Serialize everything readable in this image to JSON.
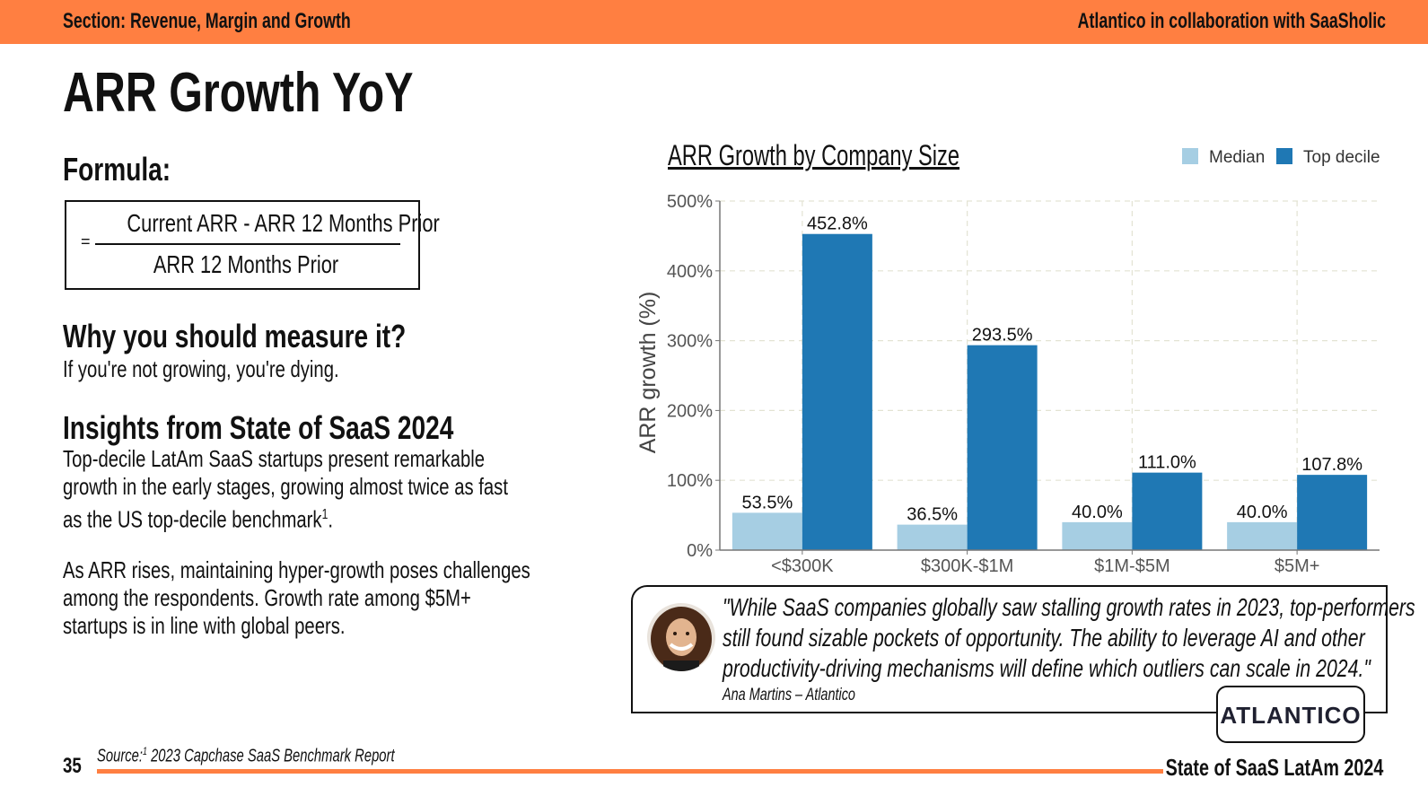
{
  "header": {
    "section": "Section: Revenue, Margin and Growth",
    "partner": "Atlantico in collaboration with SaaSholic"
  },
  "page_title": "ARR Growth YoY",
  "formula": {
    "heading": "Formula:",
    "equals": "=",
    "numerator": "Current ARR - ARR 12 Months Prior",
    "denominator": "ARR 12 Months Prior"
  },
  "why": {
    "heading": "Why you should measure it?",
    "text": "If you're not growing, you're dying."
  },
  "insights": {
    "heading": "Insights from State of SaaS 2024",
    "p1_lines": [
      "Top-decile LatAm SaaS startups present remarkable",
      "growth in the early stages, growing almost twice as fast",
      "as the US top-decile benchmark"
    ],
    "p1_sup": "1",
    "p1_end": ".",
    "p2_lines": [
      "As ARR rises, maintaining hyper-growth poses challenges",
      "among the respondents. Growth rate among $5M+",
      "startups is in line with global peers."
    ]
  },
  "chart_data": {
    "type": "bar",
    "title": "ARR Growth by Company Size",
    "categories": [
      "<$300K",
      "$300K-$1M",
      "$1M-$5M",
      "$5M+"
    ],
    "series": [
      {
        "name": "Median",
        "color": "#a6cee3",
        "values": [
          53.5,
          36.5,
          40.0,
          40.0
        ],
        "labels": [
          "53.5%",
          "36.5%",
          "40.0%",
          "40.0%"
        ]
      },
      {
        "name": "Top decile",
        "color": "#1f78b4",
        "values": [
          452.8,
          293.5,
          111.0,
          107.8
        ],
        "labels": [
          "452.8%",
          "293.5%",
          "111.0%",
          "107.8%"
        ]
      }
    ],
    "ylabel": "ARR growth (%)",
    "xlabel": "",
    "ylim": [
      0,
      500
    ],
    "yticks": [
      "0%",
      "100%",
      "200%",
      "300%",
      "400%",
      "500%"
    ],
    "grid": true,
    "legend_position": "top-right"
  },
  "quote": {
    "lines": [
      "\"While SaaS companies globally saw stalling growth rates in 2023, top-performers",
      "still found sizable pockets of opportunity. The ability to leverage AI and other",
      "productivity-driving mechanisms will define which outliers can scale in 2024.\""
    ],
    "author": "Ana Martins – Atlantico"
  },
  "logo": "ATLANTICO",
  "footer": {
    "page_number": "35",
    "source_prefix": "Source:",
    "source_sup": "1",
    "source_text": "2023 Capchase SaaS Benchmark Report",
    "report_title": "State of SaaS LatAm 2024"
  },
  "colors": {
    "accent": "#ff7f41",
    "median": "#a6cee3",
    "top_decile": "#1f78b4"
  }
}
